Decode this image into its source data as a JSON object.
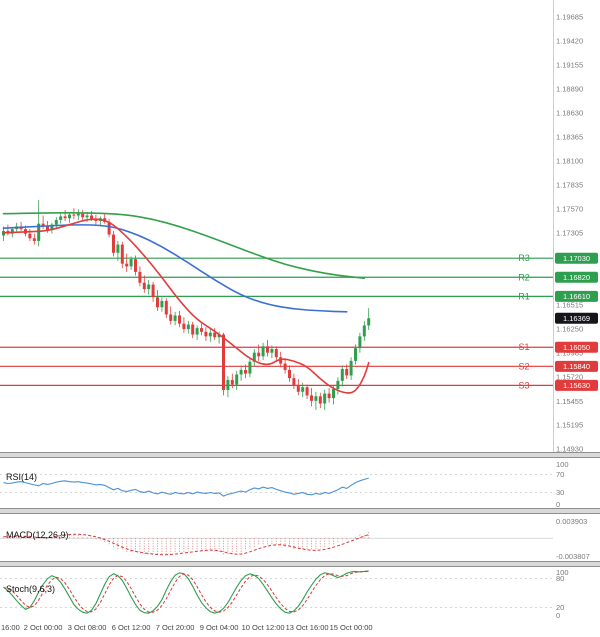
{
  "colors": {
    "resistance_green": "#2e9e4f",
    "support_red": "#e03c3c",
    "last_price_black": "#14161c",
    "candle_up": "#2f9e4f",
    "candle_down": "#e23b3b",
    "ma_slow_green": "#33a04a",
    "ma_mid_blue": "#3b6fd4",
    "ma_fast_red": "#e03c3c",
    "rsi_blue": "#4a90d9",
    "macd_red": "#d93636",
    "macd_hist_red": "#e08a8a",
    "stoch_k_green": "#2f9e4f",
    "stoch_d_red": "#d93636",
    "axis_text": "#7a7a7a",
    "time_text": "#444444"
  },
  "panels": {
    "rsi": {
      "label": "RSI(14)",
      "scale": [
        {
          "label": "100",
          "value": 100
        },
        {
          "label": "70",
          "value": 70
        },
        {
          "label": "30",
          "value": 30
        },
        {
          "label": "0",
          "value": 0
        }
      ]
    },
    "macd": {
      "label": "MACD(12,26,9)",
      "scale": [
        {
          "label": "0.003903",
          "value": 0.003903
        },
        {
          "label": "-0.003807",
          "value": -0.003807
        }
      ]
    },
    "stoch": {
      "label": "Stoch(9,6,3)",
      "scale": [
        {
          "label": "100",
          "value": 100
        },
        {
          "label": "80",
          "value": 80
        },
        {
          "label": "20",
          "value": 20
        },
        {
          "label": "0",
          "value": 0
        }
      ]
    }
  },
  "chart_data": {
    "type": "candlestick",
    "price_axis_ticks": [
      "1.19685",
      "1.19420",
      "1.19155",
      "1.18890",
      "1.18630",
      "1.18365",
      "1.18100",
      "1.17835",
      "1.17570",
      "1.17305",
      "1.16515",
      "1.16250",
      "1.15985",
      "1.15720",
      "1.15455",
      "1.15195",
      "1.14930"
    ],
    "time_axis_ticks": [
      {
        "label": "16:00",
        "index": 0
      },
      {
        "label": "2 Oct 00:00",
        "index": 9
      },
      {
        "label": "3 Oct 08:00",
        "index": 19
      },
      {
        "label": "6 Oct 12:00",
        "index": 29
      },
      {
        "label": "7 Oct 20:00",
        "index": 39
      },
      {
        "label": "9 Oct 04:00",
        "index": 49
      },
      {
        "label": "10 Oct 12:00",
        "index": 59
      },
      {
        "label": "13 Oct 16:00",
        "index": 69
      },
      {
        "label": "15 Oct 00:00",
        "index": 79
      }
    ],
    "levels": {
      "resistance": [
        {
          "name": "R3",
          "value": 1.1703,
          "label": "1.17030"
        },
        {
          "name": "R2",
          "value": 1.1682,
          "label": "1.16820"
        },
        {
          "name": "R1",
          "value": 1.1661,
          "label": "1.16610"
        }
      ],
      "support": [
        {
          "name": "S1",
          "value": 1.1605,
          "label": "1.16050"
        },
        {
          "name": "S2",
          "value": 1.1584,
          "label": "1.15840"
        },
        {
          "name": "S3",
          "value": 1.1563,
          "label": "1.15630"
        }
      ],
      "last_price": {
        "value": 1.16369,
        "label": "1.16369"
      }
    },
    "candles": [
      [
        1.1728,
        1.1738,
        1.1722,
        1.1733
      ],
      [
        1.1733,
        1.174,
        1.1728,
        1.173
      ],
      [
        1.173,
        1.1736,
        1.1726,
        1.1735
      ],
      [
        1.1735,
        1.1742,
        1.1731,
        1.1738
      ],
      [
        1.1738,
        1.1743,
        1.1733,
        1.1735
      ],
      [
        1.1735,
        1.1739,
        1.1727,
        1.173
      ],
      [
        1.173,
        1.1735,
        1.1722,
        1.1725
      ],
      [
        1.1725,
        1.173,
        1.1718,
        1.1722
      ],
      [
        1.1722,
        1.1767,
        1.1716,
        1.1741
      ],
      [
        1.1741,
        1.175,
        1.1735,
        1.1738
      ],
      [
        1.1738,
        1.1744,
        1.1731,
        1.1734
      ],
      [
        1.1734,
        1.1742,
        1.173,
        1.174
      ],
      [
        1.174,
        1.1748,
        1.1736,
        1.1745
      ],
      [
        1.1745,
        1.1752,
        1.1741,
        1.1749
      ],
      [
        1.1749,
        1.1756,
        1.1744,
        1.1747
      ],
      [
        1.1747,
        1.1753,
        1.1742,
        1.1751
      ],
      [
        1.1751,
        1.1758,
        1.1746,
        1.175
      ],
      [
        1.175,
        1.1757,
        1.1745,
        1.1752
      ],
      [
        1.1752,
        1.1756,
        1.1744,
        1.1748
      ],
      [
        1.1748,
        1.1754,
        1.1743,
        1.175
      ],
      [
        1.175,
        1.1755,
        1.1744,
        1.1746
      ],
      [
        1.1746,
        1.1751,
        1.174,
        1.1744
      ],
      [
        1.1744,
        1.1749,
        1.1738,
        1.1747
      ],
      [
        1.1747,
        1.1752,
        1.1741,
        1.1743
      ],
      [
        1.1743,
        1.1746,
        1.1726,
        1.1729
      ],
      [
        1.1729,
        1.1733,
        1.1705,
        1.1709
      ],
      [
        1.1709,
        1.1722,
        1.17,
        1.1718
      ],
      [
        1.1718,
        1.1721,
        1.1692,
        1.1697
      ],
      [
        1.1697,
        1.1708,
        1.1688,
        1.1694
      ],
      [
        1.1694,
        1.1705,
        1.169,
        1.1702
      ],
      [
        1.1702,
        1.1706,
        1.1684,
        1.1688
      ],
      [
        1.1688,
        1.1694,
        1.1672,
        1.1676
      ],
      [
        1.1676,
        1.1684,
        1.1665,
        1.1669
      ],
      [
        1.1669,
        1.1679,
        1.1663,
        1.1674
      ],
      [
        1.1674,
        1.1677,
        1.1655,
        1.166
      ],
      [
        1.166,
        1.1668,
        1.1645,
        1.1649
      ],
      [
        1.1649,
        1.166,
        1.1644,
        1.1656
      ],
      [
        1.1656,
        1.1659,
        1.1637,
        1.1641
      ],
      [
        1.1641,
        1.165,
        1.163,
        1.1634
      ],
      [
        1.1634,
        1.1644,
        1.1629,
        1.164
      ],
      [
        1.164,
        1.1645,
        1.1627,
        1.1631
      ],
      [
        1.1631,
        1.1638,
        1.1621,
        1.1625
      ],
      [
        1.1625,
        1.1634,
        1.162,
        1.163
      ],
      [
        1.163,
        1.1633,
        1.1615,
        1.1619
      ],
      [
        1.1619,
        1.1629,
        1.1613,
        1.1626
      ],
      [
        1.1626,
        1.1631,
        1.1618,
        1.1622
      ],
      [
        1.1622,
        1.1627,
        1.1612,
        1.1617
      ],
      [
        1.1617,
        1.1625,
        1.1611,
        1.1621
      ],
      [
        1.1621,
        1.1626,
        1.1613,
        1.1616
      ],
      [
        1.1616,
        1.1622,
        1.1609,
        1.1619
      ],
      [
        1.1619,
        1.1621,
        1.1552,
        1.1558
      ],
      [
        1.1558,
        1.1573,
        1.155,
        1.1569
      ],
      [
        1.1569,
        1.1576,
        1.156,
        1.1564
      ],
      [
        1.1564,
        1.1579,
        1.1558,
        1.1575
      ],
      [
        1.1575,
        1.1585,
        1.1568,
        1.158
      ],
      [
        1.158,
        1.1586,
        1.1571,
        1.1576
      ],
      [
        1.1576,
        1.1593,
        1.1572,
        1.1589
      ],
      [
        1.1589,
        1.1603,
        1.1584,
        1.1599
      ],
      [
        1.1599,
        1.1608,
        1.159,
        1.1595
      ],
      [
        1.1595,
        1.161,
        1.1591,
        1.1606
      ],
      [
        1.1606,
        1.1613,
        1.1595,
        1.1599
      ],
      [
        1.1599,
        1.1607,
        1.1593,
        1.1603
      ],
      [
        1.1603,
        1.1606,
        1.159,
        1.1594
      ],
      [
        1.1594,
        1.16,
        1.1583,
        1.1587
      ],
      [
        1.1587,
        1.1593,
        1.1576,
        1.158
      ],
      [
        1.158,
        1.1585,
        1.1567,
        1.1571
      ],
      [
        1.1571,
        1.1576,
        1.1559,
        1.1563
      ],
      [
        1.1563,
        1.157,
        1.1552,
        1.1556
      ],
      [
        1.1556,
        1.1566,
        1.155,
        1.1561
      ],
      [
        1.1561,
        1.1564,
        1.1548,
        1.1552
      ],
      [
        1.1552,
        1.156,
        1.154,
        1.1546
      ],
      [
        1.1546,
        1.1556,
        1.1536,
        1.1551
      ],
      [
        1.1551,
        1.1555,
        1.1538,
        1.1543
      ],
      [
        1.1543,
        1.1558,
        1.1536,
        1.1554
      ],
      [
        1.1554,
        1.156,
        1.1544,
        1.1549
      ],
      [
        1.1549,
        1.1563,
        1.1542,
        1.1559
      ],
      [
        1.1559,
        1.1572,
        1.1553,
        1.1568
      ],
      [
        1.1568,
        1.1585,
        1.1562,
        1.1581
      ],
      [
        1.1581,
        1.1586,
        1.157,
        1.1574
      ],
      [
        1.1574,
        1.1594,
        1.1569,
        1.159
      ],
      [
        1.159,
        1.1608,
        1.1586,
        1.1604
      ],
      [
        1.1604,
        1.1621,
        1.1599,
        1.1617
      ],
      [
        1.1617,
        1.1634,
        1.1612,
        1.1629
      ],
      [
        1.1629,
        1.1648,
        1.1624,
        1.16369
      ]
    ],
    "moving_averages": [
      {
        "name": "ma-slow",
        "color_key": "ma_slow_green",
        "points": [
          [
            0,
            1.1752
          ],
          [
            10,
            1.1753
          ],
          [
            20,
            1.1753
          ],
          [
            28,
            1.1751
          ],
          [
            34,
            1.1746
          ],
          [
            40,
            1.1738
          ],
          [
            46,
            1.1728
          ],
          [
            52,
            1.1717
          ],
          [
            58,
            1.1706
          ],
          [
            64,
            1.1696
          ],
          [
            70,
            1.1689
          ],
          [
            76,
            1.1684
          ],
          [
            82,
            1.1681
          ]
        ]
      },
      {
        "name": "ma-mid",
        "color_key": "ma_mid_blue",
        "points": [
          [
            0,
            1.1736
          ],
          [
            8,
            1.1738
          ],
          [
            16,
            1.174
          ],
          [
            24,
            1.1739
          ],
          [
            30,
            1.173
          ],
          [
            36,
            1.1716
          ],
          [
            42,
            1.1698
          ],
          [
            48,
            1.1679
          ],
          [
            54,
            1.1662
          ],
          [
            60,
            1.1652
          ],
          [
            66,
            1.1647
          ],
          [
            72,
            1.1645
          ],
          [
            78,
            1.1644
          ]
        ]
      },
      {
        "name": "ma-fast",
        "color_key": "ma_fast_red",
        "points": [
          [
            0,
            1.1731
          ],
          [
            5,
            1.1732
          ],
          [
            10,
            1.1733
          ],
          [
            15,
            1.174
          ],
          [
            20,
            1.1747
          ],
          [
            24,
            1.1744
          ],
          [
            28,
            1.1727
          ],
          [
            32,
            1.1706
          ],
          [
            36,
            1.1682
          ],
          [
            40,
            1.1656
          ],
          [
            44,
            1.1635
          ],
          [
            48,
            1.1623
          ],
          [
            52,
            1.1608
          ],
          [
            56,
            1.1592
          ],
          [
            60,
            1.1584
          ],
          [
            63,
            1.1593
          ],
          [
            66,
            1.159
          ],
          [
            69,
            1.1584
          ],
          [
            72,
            1.157
          ],
          [
            75,
            1.1559
          ],
          [
            78,
            1.1554
          ],
          [
            80,
            1.1556
          ],
          [
            82,
            1.1572
          ],
          [
            83,
            1.1588
          ]
        ]
      }
    ],
    "indicators": {
      "rsi_values": [
        52,
        50,
        51,
        53,
        54,
        52,
        49,
        47,
        45,
        50,
        48,
        50,
        53,
        55,
        56,
        54,
        53,
        54,
        52,
        51,
        49,
        47,
        48,
        46,
        41,
        36,
        39,
        34,
        32,
        35,
        37,
        32,
        30,
        33,
        29,
        27,
        31,
        28,
        26,
        30,
        28,
        27,
        30,
        27,
        31,
        29,
        28,
        30,
        28,
        29,
        22,
        26,
        28,
        31,
        33,
        31,
        36,
        40,
        38,
        42,
        39,
        41,
        37,
        34,
        31,
        29,
        26,
        28,
        30,
        26,
        25,
        28,
        26,
        30,
        28,
        32,
        36,
        42,
        39,
        46,
        52,
        56,
        59,
        62
      ],
      "rsi_grid": [
        70,
        30
      ],
      "macd_values": [
        0.0003,
        0.0002,
        0.0004,
        0.0005,
        0.0004,
        0.0003,
        0.0001,
        -0.0001,
        0.0,
        0.0002,
        0.0004,
        0.0005,
        0.0006,
        0.0007,
        0.0008,
        0.0008,
        0.0007,
        0.0006,
        0.0005,
        0.0003,
        0.0001,
        -0.0002,
        -0.0005,
        -0.0009,
        -0.0013,
        -0.0017,
        -0.002,
        -0.0023,
        -0.0025,
        -0.0026,
        -0.0027,
        -0.0028,
        -0.0029,
        -0.003,
        -0.0031,
        -0.0031,
        -0.003,
        -0.0029,
        -0.0028,
        -0.0027,
        -0.0026,
        -0.0025,
        -0.0024,
        -0.0023,
        -0.0022,
        -0.0021,
        -0.0021,
        -0.0022,
        -0.0024,
        -0.0027,
        -0.003,
        -0.0031,
        -0.003,
        -0.0028,
        -0.0025,
        -0.0022,
        -0.0019,
        -0.0016,
        -0.0014,
        -0.0012,
        -0.0011,
        -0.0011,
        -0.0012,
        -0.0014,
        -0.0016,
        -0.0018,
        -0.002,
        -0.0022,
        -0.0023,
        -0.0023,
        -0.0022,
        -0.0021,
        -0.0019,
        -0.0017,
        -0.0014,
        -0.0011,
        -0.0008,
        -0.0005,
        -0.0002,
        0.0001,
        0.0004,
        0.0007,
        0.001,
        0.0012
      ],
      "stoch_k_values": [
        62,
        55,
        45,
        34,
        24,
        16,
        20,
        34,
        52,
        68,
        80,
        86,
        82,
        72,
        58,
        42,
        26,
        16,
        10,
        8,
        14,
        28,
        48,
        68,
        84,
        90,
        86,
        76,
        60,
        42,
        26,
        14,
        9,
        8,
        13,
        22,
        36,
        56,
        74,
        87,
        92,
        90,
        80,
        64,
        46,
        30,
        19,
        11,
        8,
        11,
        18,
        30,
        46,
        62,
        76,
        86,
        90,
        87,
        80,
        68,
        54,
        40,
        27,
        17,
        10,
        8,
        13,
        22,
        36,
        52,
        66,
        79,
        88,
        92,
        90,
        86,
        82,
        86,
        91,
        94,
        95,
        94,
        95,
        96
      ],
      "stoch_grid": [
        80,
        20
      ]
    }
  }
}
